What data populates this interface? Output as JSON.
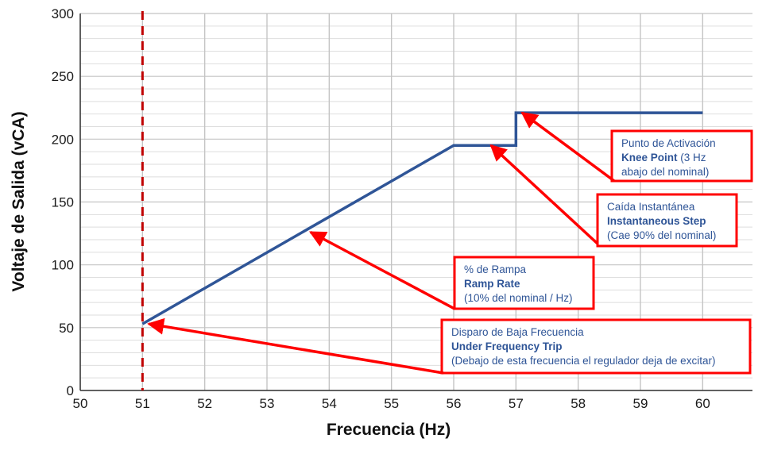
{
  "chart_data": {
    "type": "line",
    "xlabel": "Frecuencia (Hz)",
    "ylabel": "Voltaje de Salida (vCA)",
    "xlim": [
      50,
      60.8
    ],
    "ylim": [
      0,
      300
    ],
    "x_ticks": [
      "50",
      "51",
      "52",
      "53",
      "54",
      "55",
      "56",
      "57",
      "58",
      "59",
      "60"
    ],
    "y_ticks": [
      "0",
      "50",
      "100",
      "150",
      "200",
      "250",
      "300"
    ],
    "grid": true,
    "legend": "none",
    "series": [
      {
        "color": "#2f5597",
        "points": [
          [
            51,
            53
          ],
          [
            56,
            195
          ],
          [
            57,
            195
          ],
          [
            57,
            221
          ],
          [
            60,
            221
          ]
        ]
      }
    ],
    "reference_line": {
      "x": 51,
      "color": "#c00000",
      "style": "dashed"
    },
    "annotations": [
      {
        "id": "knee-point",
        "lines": [
          {
            "text": "Punto de Activación",
            "bold": false
          },
          {
            "text": "Knee Point",
            "bold": true,
            "suffix": " (3 Hz"
          },
          {
            "text": "abajo del nominal)",
            "bold": false
          }
        ],
        "target": [
          57.1,
          221
        ]
      },
      {
        "id": "instantaneous-step",
        "lines": [
          {
            "text": "Caída Instantánea",
            "bold": false
          },
          {
            "text": "Instantaneous Step",
            "bold": true
          },
          {
            "text": "(Cae 90% del nominal)",
            "bold": false
          }
        ],
        "target": [
          56.6,
          195
        ]
      },
      {
        "id": "ramp-rate",
        "lines": [
          {
            "text": "% de Rampa",
            "bold": false
          },
          {
            "text": "Ramp Rate",
            "bold": true
          },
          {
            "text": "(10% del nominal / Hz)",
            "bold": false
          }
        ],
        "target": [
          53.7,
          126
        ]
      },
      {
        "id": "under-frequency-trip",
        "lines": [
          {
            "text": "Disparo de Baja Frecuencia",
            "bold": false
          },
          {
            "text": "Under Frequency Trip",
            "bold": true
          },
          {
            "text": "(Debajo de esta frecuencia el regulador deja de excitar)",
            "bold": false
          }
        ],
        "target": [
          51.1,
          53
        ]
      }
    ],
    "colors": {
      "line": "#2f5597",
      "annotation": "#ff0000",
      "text": "#2f5597",
      "grid": "#c8c8c8"
    }
  }
}
